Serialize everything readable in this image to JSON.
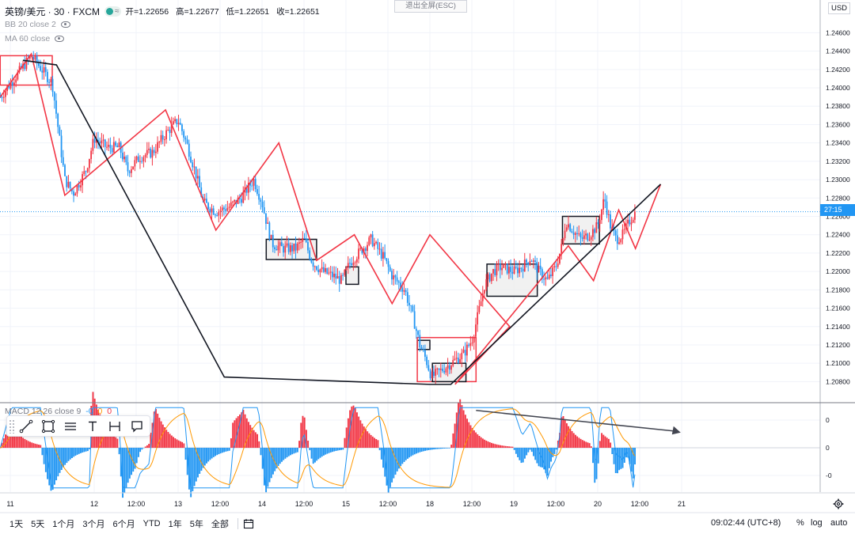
{
  "header": {
    "symbol": "英镑/美元 · 30 · FXCM",
    "open_label": "开=1.22656",
    "high_label": "高=1.22677",
    "low_label": "低=1.22651",
    "close_label": "收=1.22651"
  },
  "indicators": {
    "bb": "BB 20 close 2",
    "ma": "MA 60 close",
    "macd_name": "MACD 12 26 close 9",
    "macd_v1": "-0",
    "macd_v2": "0",
    "macd_v3": "0"
  },
  "exit_fullscreen": "退出全屏(ESC)",
  "currency": "USD",
  "last_price_tag": "27:15",
  "bottom": {
    "ranges": [
      "1天",
      "5天",
      "1个月",
      "3个月",
      "6个月",
      "YTD",
      "1年",
      "5年",
      "全部"
    ],
    "clock": "09:02:44 (UTC+8)",
    "pct": "%",
    "log": "log",
    "auto": "auto"
  },
  "chart_data": [
    {
      "type": "candlestick",
      "title": "英镑/美元 · 30 · FXCM",
      "x_ticks": [
        {
          "label": "11",
          "t": 0.0
        },
        {
          "label": "12",
          "t": 1.0
        },
        {
          "label": "12:00",
          "t": 1.5
        },
        {
          "label": "13",
          "t": 2.0
        },
        {
          "label": "12:00",
          "t": 2.5
        },
        {
          "label": "14",
          "t": 3.0
        },
        {
          "label": "12:00",
          "t": 3.5
        },
        {
          "label": "15",
          "t": 4.0
        },
        {
          "label": "12:00",
          "t": 4.5
        },
        {
          "label": "18",
          "t": 5.0
        },
        {
          "label": "12:00",
          "t": 5.5
        },
        {
          "label": "19",
          "t": 6.0
        },
        {
          "label": "12:00",
          "t": 6.5
        },
        {
          "label": "20",
          "t": 7.0
        },
        {
          "label": "12:00",
          "t": 7.5
        },
        {
          "label": "21",
          "t": 8.0
        }
      ],
      "y_ticks": [
        "1.24600",
        "1.24400",
        "1.24200",
        "1.24000",
        "1.23800",
        "1.23600",
        "1.23400",
        "1.23200",
        "1.23000",
        "1.22800",
        "1.22600",
        "1.22400",
        "1.22200",
        "1.22000",
        "1.21800",
        "1.21600",
        "1.21400",
        "1.21200",
        "1.21000",
        "1.20800"
      ],
      "ylim": [
        1.207,
        1.2475
      ],
      "last_price": 1.22651,
      "path_points": [
        [
          -0.12,
          1.239
        ],
        [
          0.25,
          1.2435
        ],
        [
          0.5,
          1.2405
        ],
        [
          0.65,
          1.23
        ],
        [
          0.75,
          1.2285
        ],
        [
          0.9,
          1.231
        ],
        [
          1.0,
          1.2345
        ],
        [
          1.15,
          1.2335
        ],
        [
          1.3,
          1.2335
        ],
        [
          1.4,
          1.231
        ],
        [
          1.55,
          1.2325
        ],
        [
          1.7,
          1.233
        ],
        [
          1.85,
          1.235
        ],
        [
          2.0,
          1.2365
        ],
        [
          2.1,
          1.234
        ],
        [
          2.2,
          1.231
        ],
        [
          2.3,
          1.2275
        ],
        [
          2.45,
          1.2265
        ],
        [
          2.6,
          1.227
        ],
        [
          2.75,
          1.228
        ],
        [
          2.9,
          1.23
        ],
        [
          3.0,
          1.2275
        ],
        [
          3.05,
          1.2255
        ],
        [
          3.12,
          1.223
        ],
        [
          3.25,
          1.2225
        ],
        [
          3.4,
          1.2225
        ],
        [
          3.5,
          1.2235
        ],
        [
          3.6,
          1.221
        ],
        [
          3.72,
          1.22
        ],
        [
          3.85,
          1.2195
        ],
        [
          3.95,
          1.219
        ],
        [
          4.05,
          1.221
        ],
        [
          4.2,
          1.2225
        ],
        [
          4.3,
          1.2235
        ],
        [
          4.45,
          1.2215
        ],
        [
          4.55,
          1.2195
        ],
        [
          4.7,
          1.218
        ],
        [
          4.8,
          1.215
        ],
        [
          4.88,
          1.212
        ],
        [
          4.95,
          1.2105
        ],
        [
          5.02,
          1.2085
        ],
        [
          5.1,
          1.209
        ],
        [
          5.25,
          1.21
        ],
        [
          5.4,
          1.211
        ],
        [
          5.5,
          1.2125
        ],
        [
          5.58,
          1.2155
        ],
        [
          5.65,
          1.2185
        ],
        [
          5.75,
          1.22
        ],
        [
          5.85,
          1.2205
        ],
        [
          6.0,
          1.22
        ],
        [
          6.1,
          1.2205
        ],
        [
          6.2,
          1.2215
        ],
        [
          6.3,
          1.22
        ],
        [
          6.4,
          1.219
        ],
        [
          6.5,
          1.2205
        ],
        [
          6.58,
          1.223
        ],
        [
          6.62,
          1.2255
        ],
        [
          6.7,
          1.2245
        ],
        [
          6.8,
          1.2235
        ],
        [
          6.9,
          1.224
        ],
        [
          7.0,
          1.225
        ],
        [
          7.08,
          1.228
        ],
        [
          7.15,
          1.225
        ],
        [
          7.22,
          1.2235
        ],
        [
          7.3,
          1.224
        ],
        [
          7.38,
          1.2255
        ],
        [
          7.45,
          1.2265
        ]
      ],
      "zigzag_red": [
        [
          -0.12,
          1.239
        ],
        [
          0.25,
          1.2437
        ],
        [
          0.65,
          1.2283
        ],
        [
          1.85,
          1.2376
        ],
        [
          2.45,
          1.2245
        ],
        [
          3.2,
          1.234
        ],
        [
          3.2,
          1.234
        ],
        [
          3.65,
          1.2212
        ],
        [
          4.1,
          1.224
        ],
        [
          4.55,
          1.2165
        ],
        [
          5.0,
          1.224
        ],
        [
          5.95,
          1.214
        ],
        [
          5.3,
          1.2077
        ],
        [
          6.65,
          1.2228
        ],
        [
          6.95,
          1.219
        ],
        [
          7.25,
          1.2267
        ],
        [
          7.45,
          1.2225
        ],
        [
          7.75,
          1.2295
        ]
      ],
      "zigzag_black": [
        [
          0.15,
          1.243
        ],
        [
          0.55,
          1.2425
        ],
        [
          2.55,
          1.2085
        ],
        [
          5.0,
          1.2077
        ],
        [
          5.25,
          1.2077
        ],
        [
          7.75,
          1.2295
        ]
      ],
      "boxes": [
        {
          "t0": -0.12,
          "t1": 0.5,
          "y0": 1.2403,
          "y1": 1.2435,
          "fill": "none",
          "stroke": "#f23645"
        },
        {
          "t0": 3.05,
          "t1": 3.65,
          "y0": 1.2213,
          "y1": 1.2235,
          "fill": "#eeeeee",
          "stroke": "#131722"
        },
        {
          "t0": 4.0,
          "t1": 4.15,
          "y0": 1.2186,
          "y1": 1.2205,
          "fill": "#eeeeee",
          "stroke": "#131722"
        },
        {
          "t0": 4.85,
          "t1": 5.0,
          "y0": 1.2115,
          "y1": 1.2125,
          "fill": "#eeeeee",
          "stroke": "#131722"
        },
        {
          "t0": 4.85,
          "t1": 5.55,
          "y0": 1.208,
          "y1": 1.2128,
          "fill": "none",
          "stroke": "#f23645"
        },
        {
          "t0": 5.03,
          "t1": 5.43,
          "y0": 1.208,
          "y1": 1.21,
          "fill": "#eeeeee",
          "stroke": "#131722"
        },
        {
          "t0": 5.68,
          "t1": 6.28,
          "y0": 1.2173,
          "y1": 1.2208,
          "fill": "#eeeeee",
          "stroke": "#131722"
        },
        {
          "t0": 6.58,
          "t1": 7.02,
          "y0": 1.223,
          "y1": 1.226,
          "fill": "#eeeeee",
          "stroke": "#131722"
        }
      ]
    },
    {
      "type": "histogram",
      "title": "MACD 12 26 close 9",
      "y_ticks": [
        "0",
        "0",
        "-0"
      ],
      "ylim": [
        -1.6,
        1.6
      ]
    }
  ],
  "colors": {
    "up": "#f23645",
    "down": "#2196f3",
    "pivot": "#f23645",
    "trend": "#131722",
    "macd": "#2196f3",
    "signal": "#ff9800",
    "hist_up": "#f23645",
    "hist_down": "#2196f3",
    "green_lines": "#4caf50"
  }
}
